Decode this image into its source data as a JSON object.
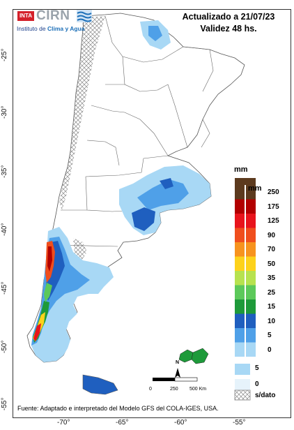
{
  "header": {
    "line1": "Actualizado a 21/07/23",
    "line2": "Validez 48 hs."
  },
  "logo": {
    "inta": "INTA",
    "cirn": "CIRN",
    "subtitle_a": "Instituto de ",
    "subtitle_b": "Clima y Agua"
  },
  "axes": {
    "lat_labels": [
      "-25°",
      "-30°",
      "-35°",
      "-40°",
      "-45°",
      "-50°",
      "-55°"
    ],
    "lon_labels": [
      "-70°",
      "-65°",
      "-60°",
      "-55°"
    ]
  },
  "legend": {
    "unit_outer": "mm",
    "unit_inner": "mm",
    "levels": [
      "250",
      "175",
      "125",
      "90",
      "70",
      "50",
      "35",
      "25",
      "15",
      "10",
      "5",
      "0"
    ],
    "extra_levels": [
      "5",
      "0"
    ],
    "no_data_label": "s/dato",
    "colors": {
      "250": "#5c3a1e",
      "175": "#b20000",
      "125": "#e8141c",
      "90": "#f04e1d",
      "70": "#f7931e",
      "50": "#fdd21b",
      "35": "#b7e24f",
      "25": "#5cc95a",
      "15": "#1e9a3a",
      "10": "#1f5fbf",
      "5": "#4fa0e8",
      "0": "#a8d8f5"
    }
  },
  "scale_bar": {
    "labels": [
      "0",
      "250",
      "500 Km"
    ],
    "north": "N"
  },
  "source": "Fuente: Adaptado e interpretado del Modelo GFS del COLA-IGES, USA."
}
